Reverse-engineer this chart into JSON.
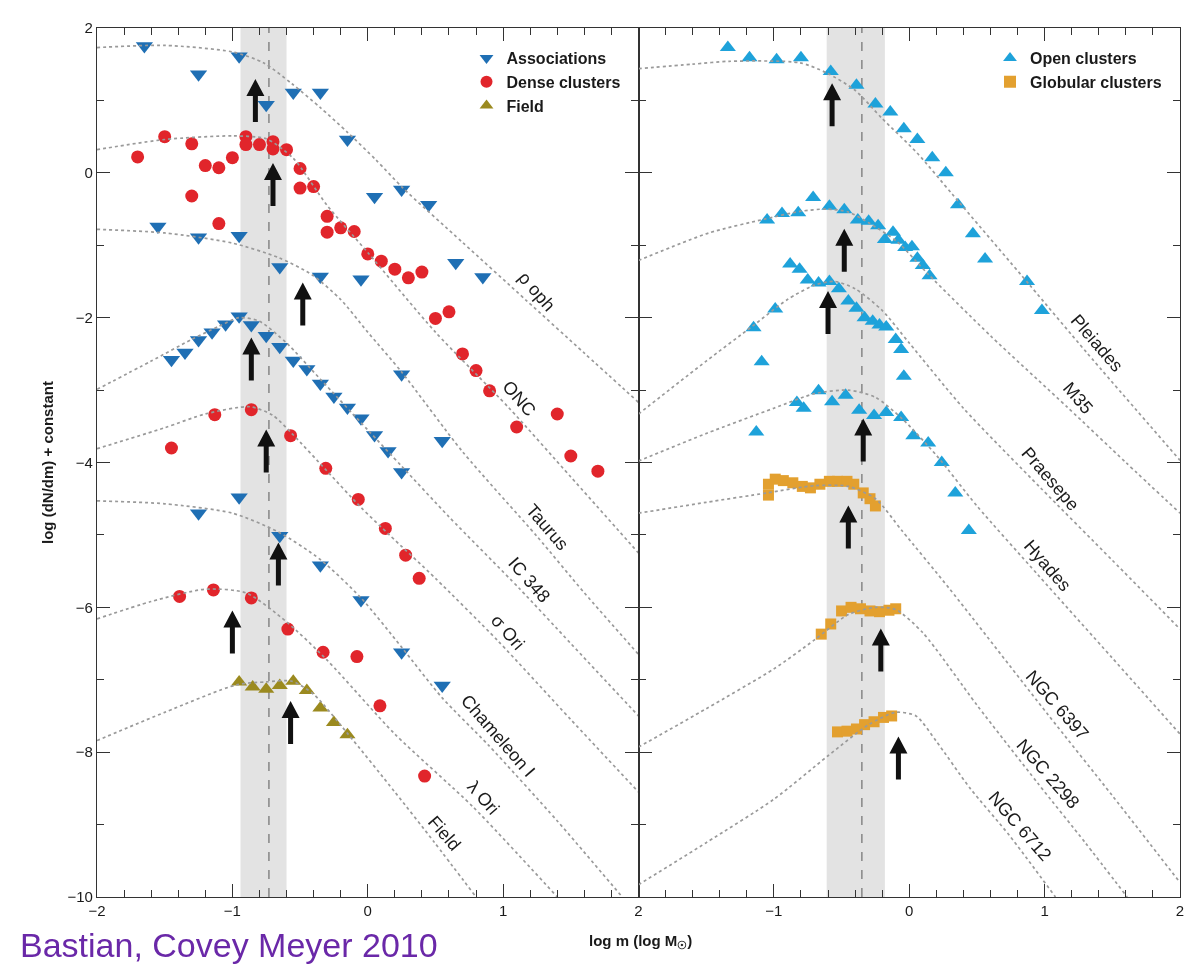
{
  "chart_data": [
    {
      "type": "scatter",
      "ylabel": "log (dN/dm) + constant",
      "xlabel": "log m (log M$_{☉}$)",
      "xlim": [
        -2,
        2
      ],
      "ylim": [
        -10,
        2
      ],
      "xticks": [
        -2,
        {
          "value": -1.8,
          "label": null
        },
        {
          "value": -1.6,
          "label": null
        },
        {
          "value": -1.4,
          "label": null
        },
        {
          "value": -1.2,
          "label": null
        },
        -1,
        {
          "value": -0.8,
          "label": null
        },
        {
          "value": -0.6,
          "label": null
        },
        {
          "value": -0.4,
          "label": null
        },
        {
          "value": -0.2,
          "label": null
        },
        0,
        {
          "value": 0.2,
          "label": null
        },
        {
          "value": 0.4,
          "label": null
        },
        {
          "value": 0.6,
          "label": null
        },
        {
          "value": 0.8,
          "label": null
        },
        1,
        {
          "value": 1.2,
          "label": null
        },
        {
          "value": 1.4,
          "label": null
        },
        {
          "value": 1.6,
          "label": null
        },
        {
          "value": 1.8,
          "label": null
        },
        2
      ],
      "yticks": [
        -10,
        {
          "value": -9,
          "label": null
        },
        -8,
        {
          "value": -7,
          "label": null
        },
        -6,
        {
          "value": -5,
          "label": null
        },
        -4,
        {
          "value": -3,
          "label": null
        },
        -2,
        {
          "value": -1,
          "label": null
        },
        0,
        {
          "value": 1,
          "label": null
        },
        2
      ],
      "legend": "top right",
      "bands": [
        {
          "axis": "x",
          "from": -0.94,
          "to": -0.6,
          "color": "#e3e3e3"
        }
      ],
      "ref_lines": [
        {
          "axis": "x",
          "value": -0.73,
          "color": "#7f7f7f",
          "line_style": "dashed"
        }
      ],
      "series": [
        {
          "type": "line",
          "color": "#9a9a9a",
          "line_style": "dotted",
          "x": [
            -2,
            -1.5,
            -1.0,
            -0.77,
            -0.56,
            -0.35,
            -0.15,
            0.06,
            0.26,
            0.7,
            1.17,
            1.6,
            2.0
          ],
          "values": [
            1.73,
            1.76,
            1.67,
            1.52,
            1.23,
            0.9,
            0.56,
            0.18,
            -0.21,
            -0.96,
            -1.76,
            -2.49,
            -3.17
          ]
        },
        {
          "type": "line",
          "color": "#9a9a9a",
          "line_style": "dotted",
          "x": [
            -2,
            -1.5,
            -1.0,
            -0.75,
            -0.55,
            -0.3,
            0.0,
            0.5,
            1.04,
            1.5,
            2.0
          ],
          "values": [
            0.32,
            0.46,
            0.51,
            0.47,
            0.2,
            -0.45,
            -1.1,
            -2.2,
            -3.24,
            -4.2,
            -5.25
          ]
        },
        {
          "type": "line",
          "color": "#9a9a9a",
          "line_style": "dotted",
          "x": [
            -2,
            -1.5,
            -1.0,
            -0.66,
            -0.41,
            -0.2,
            0.0,
            0.25,
            0.7,
            1.25,
            1.6,
            2.0
          ],
          "values": [
            -0.78,
            -0.83,
            -0.97,
            -1.17,
            -1.41,
            -1.75,
            -2.2,
            -2.75,
            -3.85,
            -5.02,
            -5.8,
            -6.65
          ]
        },
        {
          "type": "line",
          "color": "#9a9a9a",
          "line_style": "dotted",
          "x": [
            -2,
            -1.6,
            -1.3,
            -1.1,
            -0.95,
            -0.8,
            -0.6,
            -0.35,
            0.0,
            0.25,
            0.6,
            1.12,
            1.5,
            2.0
          ],
          "values": [
            -2.99,
            -2.6,
            -2.3,
            -2.12,
            -2.0,
            -2.05,
            -2.35,
            -2.85,
            -3.55,
            -4.05,
            -4.75,
            -5.74,
            -6.5,
            -7.5
          ]
        },
        {
          "type": "line",
          "color": "#9a9a9a",
          "line_style": "dotted",
          "x": [
            -2,
            -1.5,
            -1.2,
            -0.87,
            -0.7,
            -0.56,
            -0.3,
            -0.05,
            0.16,
            0.5,
            0.96,
            1.5,
            2.0
          ],
          "values": [
            -3.81,
            -3.52,
            -3.33,
            -3.23,
            -3.35,
            -3.6,
            -4.12,
            -4.62,
            -5.0,
            -5.6,
            -6.46,
            -7.55,
            -8.55
          ]
        },
        {
          "type": "line",
          "color": "#9a9a9a",
          "line_style": "dotted",
          "x": [
            -2,
            -1.5,
            -1.0,
            -0.66,
            -0.35,
            -0.05,
            0.25,
            0.55,
            0.89,
            1.4,
            1.88
          ],
          "values": [
            -4.53,
            -4.57,
            -4.7,
            -4.96,
            -5.34,
            -5.87,
            -6.55,
            -7.25,
            -7.9,
            -8.95,
            -10.0
          ]
        },
        {
          "type": "line",
          "color": "#9a9a9a",
          "line_style": "dotted",
          "x": [
            -2,
            -1.6,
            -1.2,
            -0.9,
            -0.6,
            -0.3,
            0.2,
            0.78,
            1.4
          ],
          "values": [
            -6.16,
            -5.92,
            -5.75,
            -5.8,
            -6.2,
            -6.73,
            -7.75,
            -8.76,
            -10.0
          ]
        },
        {
          "type": "line",
          "color": "#9a9a9a",
          "line_style": "dotted",
          "x": [
            -2,
            -1.5,
            -0.97,
            -0.75,
            -0.56,
            -0.4,
            -0.15,
            0.2,
            0.49,
            0.8
          ],
          "values": [
            -7.84,
            -7.45,
            -7.07,
            -7.03,
            -7.02,
            -7.2,
            -7.74,
            -8.55,
            -9.24,
            -10.0
          ]
        },
        {
          "name": "Associations",
          "marker": "triangle-down",
          "color": "#1f6fb4",
          "x": [
            -1.65,
            -0.95,
            -1.25,
            -0.75,
            -0.55,
            -0.35,
            -0.15,
            0.05,
            0.25,
            0.45,
            0.65,
            0.85,
            -1.55,
            -1.25,
            -0.95,
            -0.65,
            -0.35,
            -0.05,
            0.25,
            0.55,
            -1.45,
            -1.35,
            -1.25,
            -1.15,
            -1.05,
            -0.95,
            -0.86,
            -0.75,
            -0.65,
            -0.55,
            -0.45,
            -0.35,
            -0.25,
            -0.15,
            -0.05,
            0.05,
            0.15,
            0.25,
            -1.25,
            -0.95,
            -0.65,
            -0.35,
            -0.05,
            0.25,
            0.55
          ],
          "values": [
            1.75,
            1.61,
            1.36,
            0.94,
            1.11,
            1.11,
            0.46,
            -0.33,
            -0.23,
            -0.44,
            -1.24,
            -1.44,
            -0.74,
            -0.89,
            -0.87,
            -1.3,
            -1.43,
            -1.47,
            -2.78,
            -3.7,
            -2.58,
            -2.48,
            -2.31,
            -2.2,
            -2.09,
            -1.98,
            -2.1,
            -2.25,
            -2.4,
            -2.59,
            -2.71,
            -2.91,
            -3.09,
            -3.24,
            -3.39,
            -3.62,
            -3.84,
            -4.13,
            -4.7,
            -4.48,
            -5.01,
            -5.42,
            -5.9,
            -6.62,
            -7.08
          ]
        },
        {
          "name": "Dense clusters",
          "marker": "circle",
          "color": "#e1252b",
          "x": [
            -1.7,
            -1.5,
            -1.3,
            -1.3,
            -1.2,
            -1.1,
            -1.0,
            -1.1,
            -0.9,
            -0.9,
            -0.8,
            -0.7,
            -0.7,
            -0.6,
            -0.5,
            -0.5,
            -0.4,
            -0.3,
            -0.3,
            -0.2,
            -0.1,
            0.0,
            0.1,
            0.2,
            0.3,
            0.4,
            0.5,
            0.6,
            0.7,
            0.8,
            0.9,
            1.1,
            1.4,
            1.5,
            1.7,
            -1.45,
            -1.13,
            -0.86,
            -0.57,
            -0.31,
            -0.07,
            0.13,
            0.28,
            0.38,
            -1.39,
            -1.14,
            -0.86,
            -0.59,
            -0.33,
            -0.08,
            0.09,
            0.42
          ],
          "values": [
            0.22,
            0.5,
            0.4,
            -0.32,
            0.1,
            0.07,
            0.21,
            -0.7,
            0.5,
            0.39,
            0.39,
            0.43,
            0.33,
            0.32,
            0.06,
            -0.21,
            -0.19,
            -0.6,
            -0.82,
            -0.76,
            -0.81,
            -1.12,
            -1.22,
            -1.33,
            -1.45,
            -1.37,
            -2.01,
            -1.92,
            -2.5,
            -2.73,
            -3.01,
            -3.51,
            -3.33,
            -3.91,
            -4.12,
            -3.8,
            -3.34,
            -3.27,
            -3.63,
            -4.08,
            -4.51,
            -4.91,
            -5.28,
            -5.6,
            -5.85,
            -5.76,
            -5.87,
            -6.3,
            -6.62,
            -6.68,
            -7.36,
            -8.33
          ]
        },
        {
          "name": "Field",
          "marker": "triangle",
          "color": "#9b8a1f",
          "x": [
            -0.95,
            -0.85,
            -0.75,
            -0.65,
            -0.55,
            -0.45,
            -0.35,
            -0.25,
            -0.15
          ],
          "values": [
            -7.03,
            -7.1,
            -7.13,
            -7.08,
            -7.02,
            -7.15,
            -7.39,
            -7.59,
            -7.76
          ]
        },
        {
          "color": "#111111",
          "x": [
            -0.83,
            -0.7,
            -0.48,
            -0.86,
            -0.75,
            -0.66,
            -1.0,
            -0.57
          ],
          "values": [
            1.0,
            -0.16,
            -1.81,
            -2.57,
            -3.84,
            -5.4,
            -6.34,
            -7.59
          ]
        }
      ],
      "annotations": [
        {
          "text": "ρ oph",
          "x": 1.17,
          "y": -1.76
        },
        {
          "text": "ONC",
          "x": 1.04,
          "y": -3.24
        },
        {
          "text": "Taurus",
          "x": 1.25,
          "y": -5.02
        },
        {
          "text": "IC 348",
          "x": 1.12,
          "y": -5.74
        },
        {
          "text": "σ Ori",
          "x": 0.96,
          "y": -6.46
        },
        {
          "text": "Chameleon I",
          "x": 0.89,
          "y": -7.9
        },
        {
          "text": "λ Ori",
          "x": 0.78,
          "y": -8.76
        },
        {
          "text": "Field",
          "x": 0.49,
          "y": -9.24
        },
        "Bastian, Covey Meyer 2010"
      ]
    },
    {
      "type": "scatter",
      "xlim": [
        -2,
        2
      ],
      "ylim": [
        -10,
        2
      ],
      "tick_labels": "x",
      "xticks": [
        {
          "value": -2,
          "label": null
        },
        {
          "value": -1.8,
          "label": null
        },
        {
          "value": -1.6,
          "label": null
        },
        {
          "value": -1.4,
          "label": null
        },
        {
          "value": -1.2,
          "label": null
        },
        -1,
        {
          "value": -0.8,
          "label": null
        },
        {
          "value": -0.6,
          "label": null
        },
        {
          "value": -0.4,
          "label": null
        },
        {
          "value": -0.2,
          "label": null
        },
        0,
        {
          "value": 0.2,
          "label": null
        },
        {
          "value": 0.4,
          "label": null
        },
        {
          "value": 0.6,
          "label": null
        },
        {
          "value": 0.8,
          "label": null
        },
        1,
        {
          "value": 1.2,
          "label": null
        },
        {
          "value": 1.4,
          "label": null
        },
        {
          "value": 1.6,
          "label": null
        },
        {
          "value": 1.8,
          "label": null
        },
        2
      ],
      "yticks": [
        -10,
        {
          "value": -9,
          "label": null
        },
        -8,
        {
          "value": -7,
          "label": null
        },
        -6,
        {
          "value": -5,
          "label": null
        },
        -4,
        {
          "value": -3,
          "label": null
        },
        -2,
        {
          "value": -1,
          "label": null
        },
        0,
        {
          "value": 1,
          "label": null
        },
        2
      ],
      "legend": "top right",
      "bands": [
        {
          "axis": "x",
          "from": -0.61,
          "to": -0.18,
          "color": "#e3e3e3"
        }
      ],
      "ref_lines": [
        {
          "axis": "x",
          "value": -0.35,
          "color": "#7f7f7f",
          "line_style": "dashed"
        }
      ],
      "series": [
        {
          "type": "line",
          "color": "#9a9a9a",
          "line_style": "dotted",
          "x": [
            -2,
            -1.6,
            -1.33,
            -0.81,
            -0.61,
            -0.4,
            -0.2,
            0.06,
            0.32,
            0.89,
            1.31,
            2.0
          ],
          "values": [
            1.44,
            1.5,
            1.54,
            1.52,
            1.38,
            1.14,
            0.75,
            0.27,
            -0.3,
            -1.55,
            -2.48,
            -3.97
          ]
        },
        {
          "type": "line",
          "color": "#9a9a9a",
          "line_style": "dotted",
          "x": [
            -2,
            -1.48,
            -1.07,
            -0.8,
            -0.61,
            -0.45,
            -0.3,
            -0.09,
            0.14,
            0.6,
            1.17,
            1.6,
            2.0
          ],
          "values": [
            -1.21,
            -0.83,
            -0.64,
            -0.53,
            -0.5,
            -0.54,
            -0.69,
            -0.95,
            -1.4,
            -2.25,
            -3.24,
            -4.0,
            -4.7
          ]
        },
        {
          "type": "line",
          "color": "#9a9a9a",
          "line_style": "dotted",
          "x": [
            -2,
            -1.5,
            -1.16,
            -0.9,
            -0.7,
            -0.55,
            -0.4,
            -0.2,
            0.0,
            0.4,
            0.97,
            1.5,
            2.0
          ],
          "values": [
            -3.33,
            -2.6,
            -2.12,
            -1.75,
            -1.55,
            -1.5,
            -1.6,
            -1.9,
            -2.35,
            -3.25,
            -4.35,
            -5.35,
            -6.3
          ]
        },
        {
          "type": "line",
          "color": "#9a9a9a",
          "line_style": "dotted",
          "x": [
            -2,
            -1.5,
            -1.0,
            -0.7,
            -0.45,
            -0.25,
            -0.05,
            0.2,
            0.5,
            0.95,
            1.5,
            2.0
          ],
          "values": [
            -3.98,
            -3.6,
            -3.25,
            -3.05,
            -3.0,
            -3.1,
            -3.4,
            -3.9,
            -4.6,
            -5.55,
            -6.7,
            -7.75
          ]
        },
        {
          "type": "line",
          "color": "#9a9a9a",
          "line_style": "dotted",
          "x": [
            -2,
            -1.5,
            -1.05,
            -0.7,
            -0.45,
            -0.25,
            -0.05,
            0.3,
            1.02,
            1.5,
            2.0
          ],
          "values": [
            -4.7,
            -4.55,
            -4.42,
            -4.32,
            -4.33,
            -4.5,
            -4.95,
            -5.75,
            -7.47,
            -8.6,
            -9.8
          ]
        },
        {
          "type": "line",
          "color": "#9a9a9a",
          "line_style": "dotted",
          "x": [
            -2,
            -1.5,
            -1.0,
            -0.7,
            -0.45,
            -0.25,
            -0.1,
            0.1,
            0.5,
            0.95,
            1.3,
            1.61
          ],
          "values": [
            -7.93,
            -7.4,
            -6.85,
            -6.45,
            -6.1,
            -6.0,
            -6.03,
            -6.35,
            -7.35,
            -8.43,
            -9.25,
            -10.0
          ]
        },
        {
          "type": "line",
          "color": "#9a9a9a",
          "line_style": "dotted",
          "x": [
            -2,
            -1.5,
            -1.0,
            -0.6,
            -0.3,
            -0.1,
            0.05,
            0.2,
            0.45,
            0.74,
            1.08
          ],
          "values": [
            -9.83,
            -9.25,
            -8.65,
            -8.05,
            -7.62,
            -7.45,
            -7.5,
            -7.85,
            -8.5,
            -9.15,
            -10.0
          ]
        },
        {
          "name": "Open clusters",
          "marker": "triangle",
          "color": "#1ea2da",
          "x": [
            -1.34,
            -1.18,
            -0.98,
            -0.8,
            -0.58,
            -0.39,
            -0.25,
            -0.14,
            -0.04,
            0.06,
            0.17,
            0.27,
            0.36,
            0.47,
            0.56,
            0.87,
            0.98,
            -1.05,
            -0.94,
            -0.82,
            -0.71,
            -0.59,
            -0.48,
            -0.38,
            -0.3,
            -0.23,
            -0.18,
            -0.12,
            -0.08,
            -0.03,
            0.02,
            0.06,
            0.1,
            0.15,
            -1.15,
            -1.09,
            -0.99,
            -0.88,
            -0.81,
            -0.75,
            -0.67,
            -0.59,
            -0.52,
            -0.45,
            -0.39,
            -0.33,
            -0.27,
            -0.22,
            -0.17,
            -0.1,
            -0.06,
            -0.04,
            -1.13,
            -0.83,
            -0.78,
            -0.67,
            -0.57,
            -0.47,
            -0.37,
            -0.26,
            -0.17,
            -0.06,
            0.03,
            0.14,
            0.24,
            0.34,
            0.44
          ],
          "values": [
            1.73,
            1.59,
            1.56,
            1.59,
            1.4,
            1.21,
            0.95,
            0.84,
            0.61,
            0.46,
            0.21,
            0.0,
            -0.44,
            -0.84,
            -1.19,
            -1.5,
            -1.9,
            -0.65,
            -0.56,
            -0.55,
            -0.34,
            -0.46,
            -0.51,
            -0.65,
            -0.67,
            -0.73,
            -0.92,
            -0.82,
            -0.93,
            -1.03,
            -1.02,
            -1.18,
            -1.28,
            -1.42,
            -2.14,
            -2.61,
            -1.88,
            -1.26,
            -1.33,
            -1.48,
            -1.52,
            -1.5,
            -1.6,
            -1.77,
            -1.87,
            -2.0,
            -2.05,
            -2.1,
            -2.13,
            -2.3,
            -2.44,
            -2.81,
            -3.58,
            -3.17,
            -3.25,
            -3.01,
            -3.16,
            -3.07,
            -3.28,
            -3.35,
            -3.31,
            -3.38,
            -3.63,
            -3.73,
            -4.0,
            -4.42,
            -4.94
          ]
        },
        {
          "name": "Globular clusters",
          "marker": "square",
          "color": "#e3a02f",
          "x": [
            -1.04,
            -1.04,
            -0.99,
            -0.93,
            -0.86,
            -0.79,
            -0.73,
            -0.66,
            -0.59,
            -0.53,
            -0.46,
            -0.41,
            -0.34,
            -0.29,
            -0.25,
            -0.65,
            -0.58,
            -0.5,
            -0.43,
            -0.36,
            -0.29,
            -0.22,
            -0.15,
            -0.1,
            -0.53,
            -0.46,
            -0.39,
            -0.33,
            -0.26,
            -0.19,
            -0.13
          ],
          "values": [
            -4.45,
            -4.3,
            -4.23,
            -4.25,
            -4.28,
            -4.33,
            -4.35,
            -4.3,
            -4.26,
            -4.26,
            -4.26,
            -4.3,
            -4.42,
            -4.5,
            -4.6,
            -6.37,
            -6.23,
            -6.05,
            -6.0,
            -6.02,
            -6.05,
            -6.06,
            -6.04,
            -6.02,
            -7.72,
            -7.71,
            -7.68,
            -7.62,
            -7.58,
            -7.52,
            -7.5
          ]
        },
        {
          "color": "#111111",
          "x": [
            -0.57,
            -0.48,
            -0.6,
            -0.34,
            -0.45,
            -0.21,
            -0.08
          ],
          "values": [
            0.94,
            -1.07,
            -1.93,
            -3.69,
            -4.89,
            -6.59,
            -8.08
          ]
        }
      ],
      "annotations": [
        {
          "text": "Pleiades",
          "x": 1.31,
          "y": -2.48
        },
        {
          "text": "M35",
          "x": 1.17,
          "y": -3.24
        },
        {
          "text": "Praesepe",
          "x": 0.97,
          "y": -4.35
        },
        {
          "text": "Hyades",
          "x": 0.95,
          "y": -5.55
        },
        {
          "text": "NGC 6397",
          "x": 1.02,
          "y": -7.47
        },
        {
          "text": "NGC 2298",
          "x": 0.95,
          "y": -8.43
        },
        {
          "text": "NGC 6712",
          "x": 0.74,
          "y": -9.15
        }
      ]
    }
  ]
}
